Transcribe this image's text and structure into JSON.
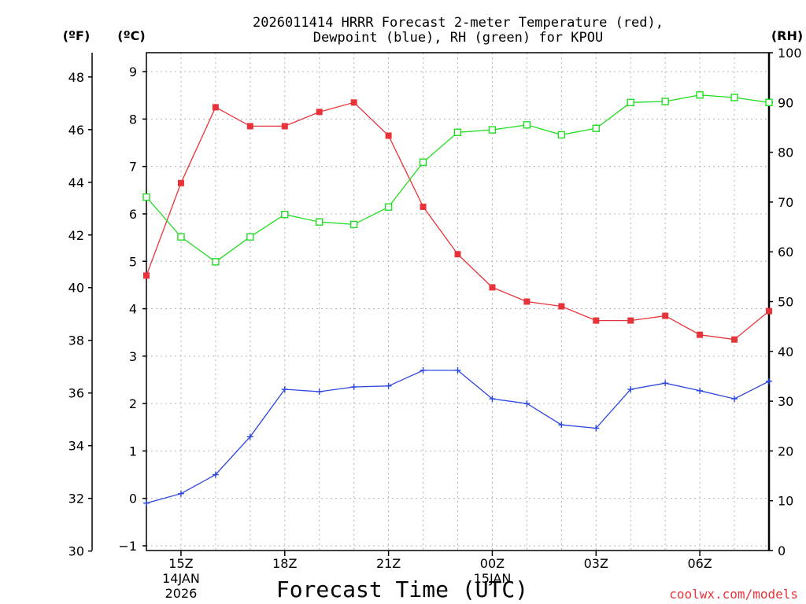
{
  "chart_data": {
    "type": "line",
    "title_line1": "2026011414 HRRR Forecast 2-meter Temperature (red),",
    "title_line2": "Dewpoint (blue), RH (green) for KPOU",
    "xlabel": "Forecast Time (UTC)",
    "credit": "coolwx.com/models",
    "unit_f": "(ºF)",
    "unit_c": "(ºC)",
    "unit_rh": "(RH)",
    "x_hours": [
      14,
      15,
      16,
      17,
      18,
      19,
      20,
      21,
      22,
      23,
      24,
      25,
      26,
      27,
      28,
      29,
      30,
      31,
      32
    ],
    "xlim": [
      14,
      32
    ],
    "ylim_c": [
      -1.1,
      9.4
    ],
    "ylim_rh": [
      0,
      100
    ],
    "c_ticks": [
      -1,
      0,
      1,
      2,
      3,
      4,
      5,
      6,
      7,
      8,
      9
    ],
    "c_tick_labels": [
      "−1",
      "0",
      "1",
      "2",
      "3",
      "4",
      "5",
      "6",
      "7",
      "8",
      "9"
    ],
    "f_ticks": [
      30,
      32,
      34,
      36,
      38,
      40,
      42,
      44,
      46,
      48
    ],
    "rh_ticks": [
      0,
      10,
      20,
      30,
      40,
      50,
      60,
      70,
      80,
      90,
      100
    ],
    "x_ticks": [
      {
        "hour": 15,
        "label": "15Z",
        "line2": "14JAN",
        "line3": "2026"
      },
      {
        "hour": 18,
        "label": "18Z"
      },
      {
        "hour": 21,
        "label": "21Z"
      },
      {
        "hour": 24,
        "label": "00Z",
        "line2": "15JAN"
      },
      {
        "hour": 27,
        "label": "03Z"
      },
      {
        "hour": 30,
        "label": "06Z"
      }
    ],
    "series": [
      {
        "name": "2-meter Temperature",
        "color": "#e8333a",
        "axis": "c",
        "marker": "filled-square",
        "values": [
          4.7,
          6.65,
          8.25,
          7.85,
          7.85,
          8.15,
          8.35,
          7.65,
          6.15,
          5.15,
          4.45,
          4.15,
          4.05,
          3.75,
          3.75,
          3.85,
          3.45,
          3.35,
          3.95
        ]
      },
      {
        "name": "Dewpoint",
        "color": "#2b45e0",
        "axis": "c",
        "marker": "plus",
        "values": [
          -0.1,
          0.1,
          0.5,
          1.3,
          2.3,
          2.25,
          2.35,
          2.37,
          2.7,
          2.7,
          2.1,
          2.0,
          1.55,
          1.48,
          2.3,
          2.43,
          2.27,
          2.1,
          2.47
        ]
      },
      {
        "name": "RH",
        "color": "#22dd22",
        "axis": "rh",
        "marker": "open-square",
        "values": [
          71,
          63,
          58,
          63,
          67.5,
          66,
          65.5,
          69,
          78,
          84,
          84.5,
          85.5,
          83.5,
          84.8,
          90,
          90.2,
          91.5,
          91,
          90
        ]
      }
    ]
  }
}
